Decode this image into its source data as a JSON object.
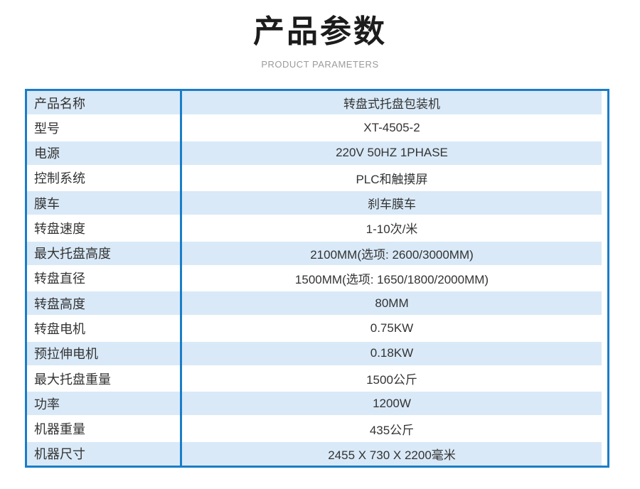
{
  "page": {
    "title": "产品参数",
    "subtitle": "PRODUCT PARAMETERS"
  },
  "colors": {
    "table_border": "#1a7dc9",
    "row_highlight": "#d9e9f7",
    "row_plain": "#ffffff",
    "title_text": "#1c1c1c",
    "subtitle_text": "#9b9b9b",
    "cell_text": "#333333"
  },
  "table": {
    "rows": [
      {
        "label": "产品名称",
        "value": "转盘式托盘包装机"
      },
      {
        "label": "型号",
        "value": "XT-4505-2"
      },
      {
        "label": "电源",
        "value": "220V 50HZ 1PHASE"
      },
      {
        "label": "控制系统",
        "value": "PLC和触摸屏"
      },
      {
        "label": "膜车",
        "value": "刹车膜车"
      },
      {
        "label": "转盘速度",
        "value": "1-10次/米"
      },
      {
        "label": "最大托盘高度",
        "value": "2100MM(选项: 2600/3000MM)"
      },
      {
        "label": "转盘直径",
        "value": "1500MM(选项: 1650/1800/2000MM)"
      },
      {
        "label": "转盘高度",
        "value": "80MM"
      },
      {
        "label": "转盘电机",
        "value": "0.75KW"
      },
      {
        "label": "预拉伸电机",
        "value": "0.18KW"
      },
      {
        "label": "最大托盘重量",
        "value": "1500公斤"
      },
      {
        "label": "功率",
        "value": "1200W"
      },
      {
        "label": "机器重量",
        "value": "435公斤"
      },
      {
        "label": "机器尺寸",
        "value": "2455 X 730 X 2200毫米"
      }
    ]
  }
}
